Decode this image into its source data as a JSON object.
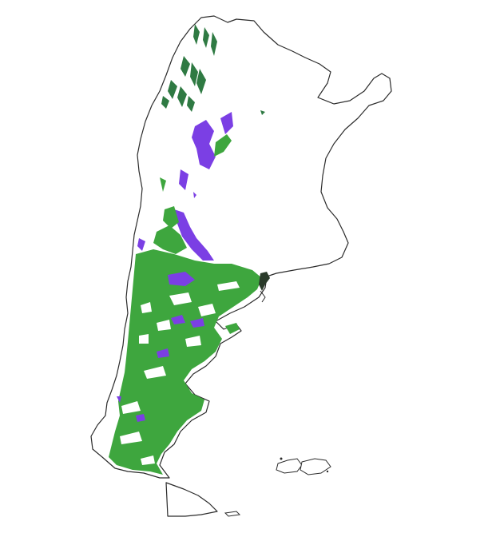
{
  "map": {
    "region": "Argentina",
    "colors": {
      "background": "#ffffff",
      "outline": "#2b2b2b",
      "class_green": "#3ea63e",
      "class_dark_green": "#2f7a43",
      "class_purple": "#7b3fe4",
      "delta_dark": "#2a3a2a"
    },
    "legend": "none",
    "labels": "none"
  }
}
